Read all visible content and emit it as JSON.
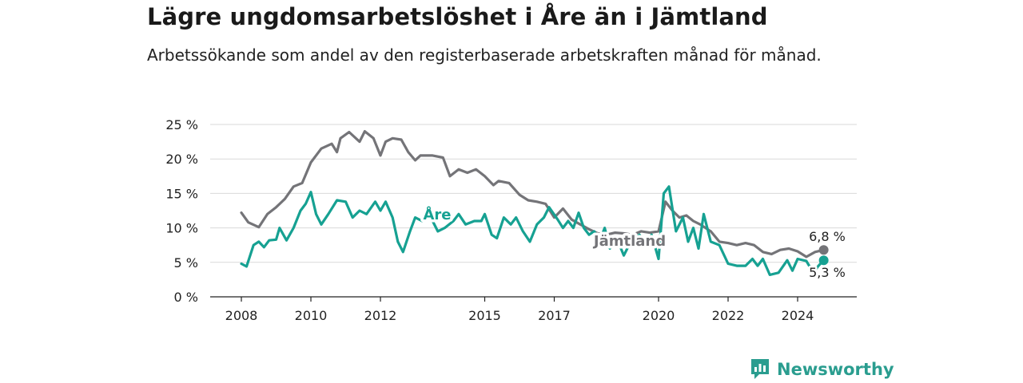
{
  "title": "Lägre ungdomsarbetslöshet i Åre än i Jämtland",
  "subtitle": "Arbetssökande som andel av den registerbaserade arbetskraften månad för månad.",
  "brand": {
    "name": "Newsworthy",
    "icon": "bar-chart-speech-bubble-icon",
    "color": "#2a9d8f"
  },
  "chart_data": {
    "type": "line",
    "title": "Lägre ungdomsarbetslöshet i Åre än i Jämtland",
    "subtitle": "Arbetssökande som andel av den registerbaserade arbetskraften månad för månad.",
    "xlabel": "",
    "ylabel": "",
    "ylim": [
      0,
      25
    ],
    "yticks": [
      0,
      5,
      10,
      15,
      20,
      25
    ],
    "ytick_labels": [
      "0 %",
      "5 %",
      "10 %",
      "15 %",
      "20 %",
      "25 %"
    ],
    "xlim": [
      2008,
      2025.0
    ],
    "xticks": [
      2008,
      2010,
      2012,
      2015,
      2017,
      2020,
      2022,
      2024
    ],
    "xtick_labels": [
      "2008",
      "2010",
      "2012",
      "2015",
      "2017",
      "2020",
      "2022",
      "2024"
    ],
    "grid": "horizontal",
    "series": [
      {
        "name": "Jämtland",
        "color": "#747478",
        "end_label": "6,8 %",
        "points": [
          [
            2008.0,
            12.2
          ],
          [
            2008.2,
            10.8
          ],
          [
            2008.5,
            10.1
          ],
          [
            2008.75,
            12.0
          ],
          [
            2009.0,
            13.0
          ],
          [
            2009.25,
            14.2
          ],
          [
            2009.5,
            16.0
          ],
          [
            2009.75,
            16.5
          ],
          [
            2010.0,
            19.5
          ],
          [
            2010.3,
            21.5
          ],
          [
            2010.6,
            22.2
          ],
          [
            2010.75,
            21.0
          ],
          [
            2010.85,
            23.0
          ],
          [
            2011.1,
            23.9
          ],
          [
            2011.4,
            22.5
          ],
          [
            2011.55,
            24.0
          ],
          [
            2011.8,
            23.0
          ],
          [
            2012.0,
            20.5
          ],
          [
            2012.15,
            22.5
          ],
          [
            2012.35,
            23.0
          ],
          [
            2012.6,
            22.8
          ],
          [
            2012.8,
            21.0
          ],
          [
            2013.0,
            19.8
          ],
          [
            2013.15,
            20.5
          ],
          [
            2013.5,
            20.5
          ],
          [
            2013.8,
            20.2
          ],
          [
            2014.0,
            17.5
          ],
          [
            2014.25,
            18.5
          ],
          [
            2014.5,
            18.0
          ],
          [
            2014.75,
            18.5
          ],
          [
            2015.0,
            17.5
          ],
          [
            2015.25,
            16.2
          ],
          [
            2015.4,
            16.8
          ],
          [
            2015.7,
            16.5
          ],
          [
            2016.0,
            14.8
          ],
          [
            2016.25,
            14.0
          ],
          [
            2016.5,
            13.8
          ],
          [
            2016.75,
            13.5
          ],
          [
            2017.0,
            11.5
          ],
          [
            2017.25,
            12.8
          ],
          [
            2017.5,
            11.2
          ],
          [
            2017.75,
            10.5
          ],
          [
            2018.0,
            9.8
          ],
          [
            2018.25,
            9.2
          ],
          [
            2018.5,
            9.0
          ],
          [
            2018.75,
            9.3
          ],
          [
            2019.0,
            9.2
          ],
          [
            2019.25,
            9.0
          ],
          [
            2019.5,
            9.5
          ],
          [
            2019.75,
            9.3
          ],
          [
            2020.0,
            9.5
          ],
          [
            2020.2,
            13.8
          ],
          [
            2020.4,
            12.5
          ],
          [
            2020.6,
            11.5
          ],
          [
            2020.8,
            11.8
          ],
          [
            2021.0,
            11.0
          ],
          [
            2021.2,
            10.5
          ],
          [
            2021.5,
            9.5
          ],
          [
            2021.75,
            8.0
          ],
          [
            2022.0,
            7.8
          ],
          [
            2022.25,
            7.5
          ],
          [
            2022.5,
            7.8
          ],
          [
            2022.75,
            7.5
          ],
          [
            2023.0,
            6.5
          ],
          [
            2023.25,
            6.2
          ],
          [
            2023.5,
            6.8
          ],
          [
            2023.75,
            7.0
          ],
          [
            2024.0,
            6.6
          ],
          [
            2024.25,
            5.8
          ],
          [
            2024.5,
            6.5
          ],
          [
            2024.75,
            6.8
          ]
        ]
      },
      {
        "name": "Åre",
        "color": "#16a192",
        "end_label": "5,3 %",
        "points": [
          [
            2008.0,
            4.8
          ],
          [
            2008.15,
            4.4
          ],
          [
            2008.35,
            7.5
          ],
          [
            2008.5,
            8.0
          ],
          [
            2008.65,
            7.2
          ],
          [
            2008.8,
            8.2
          ],
          [
            2009.0,
            8.3
          ],
          [
            2009.1,
            10.0
          ],
          [
            2009.3,
            8.2
          ],
          [
            2009.5,
            10.0
          ],
          [
            2009.7,
            12.5
          ],
          [
            2009.85,
            13.5
          ],
          [
            2010.0,
            15.2
          ],
          [
            2010.15,
            12.0
          ],
          [
            2010.3,
            10.5
          ],
          [
            2010.5,
            12.0
          ],
          [
            2010.75,
            14.0
          ],
          [
            2011.0,
            13.8
          ],
          [
            2011.2,
            11.5
          ],
          [
            2011.4,
            12.5
          ],
          [
            2011.6,
            12.0
          ],
          [
            2011.85,
            13.8
          ],
          [
            2012.0,
            12.5
          ],
          [
            2012.15,
            13.8
          ],
          [
            2012.35,
            11.5
          ],
          [
            2012.5,
            8.0
          ],
          [
            2012.65,
            6.5
          ],
          [
            2012.85,
            9.5
          ],
          [
            2013.0,
            11.5
          ],
          [
            2013.2,
            11.0
          ],
          [
            2013.45,
            11.5
          ],
          [
            2013.65,
            9.5
          ],
          [
            2013.85,
            10.0
          ],
          [
            2014.1,
            11.0
          ],
          [
            2014.25,
            12.0
          ],
          [
            2014.45,
            10.5
          ],
          [
            2014.7,
            11.0
          ],
          [
            2014.9,
            11.0
          ],
          [
            2015.0,
            12.0
          ],
          [
            2015.2,
            9.0
          ],
          [
            2015.35,
            8.5
          ],
          [
            2015.55,
            11.5
          ],
          [
            2015.75,
            10.5
          ],
          [
            2015.9,
            11.5
          ],
          [
            2016.1,
            9.5
          ],
          [
            2016.3,
            8.0
          ],
          [
            2016.5,
            10.5
          ],
          [
            2016.7,
            11.5
          ],
          [
            2016.85,
            13.0
          ],
          [
            2017.1,
            11.2
          ],
          [
            2017.25,
            10.0
          ],
          [
            2017.4,
            11.0
          ],
          [
            2017.55,
            10.0
          ],
          [
            2017.7,
            12.2
          ],
          [
            2017.85,
            10.0
          ],
          [
            2018.0,
            9.0
          ],
          [
            2018.15,
            9.5
          ],
          [
            2018.3,
            8.0
          ],
          [
            2018.45,
            10.0
          ],
          [
            2018.6,
            7.0
          ],
          [
            2018.8,
            8.5
          ],
          [
            2019.0,
            6.0
          ],
          [
            2019.2,
            8.0
          ],
          [
            2019.45,
            9.0
          ],
          [
            2019.65,
            7.5
          ],
          [
            2019.8,
            9.0
          ],
          [
            2020.0,
            5.5
          ],
          [
            2020.15,
            15.0
          ],
          [
            2020.3,
            16.0
          ],
          [
            2020.5,
            9.5
          ],
          [
            2020.7,
            11.5
          ],
          [
            2020.85,
            8.0
          ],
          [
            2021.0,
            10.0
          ],
          [
            2021.15,
            7.0
          ],
          [
            2021.3,
            12.0
          ],
          [
            2021.5,
            8.0
          ],
          [
            2021.75,
            7.5
          ],
          [
            2022.0,
            4.8
          ],
          [
            2022.25,
            4.5
          ],
          [
            2022.5,
            4.5
          ],
          [
            2022.7,
            5.5
          ],
          [
            2022.85,
            4.5
          ],
          [
            2023.0,
            5.5
          ],
          [
            2023.2,
            3.2
          ],
          [
            2023.45,
            3.5
          ],
          [
            2023.7,
            5.3
          ],
          [
            2023.85,
            3.8
          ],
          [
            2024.0,
            5.5
          ],
          [
            2024.25,
            5.2
          ],
          [
            2024.45,
            3.5
          ],
          [
            2024.6,
            4.5
          ],
          [
            2024.75,
            5.3
          ]
        ]
      }
    ]
  }
}
